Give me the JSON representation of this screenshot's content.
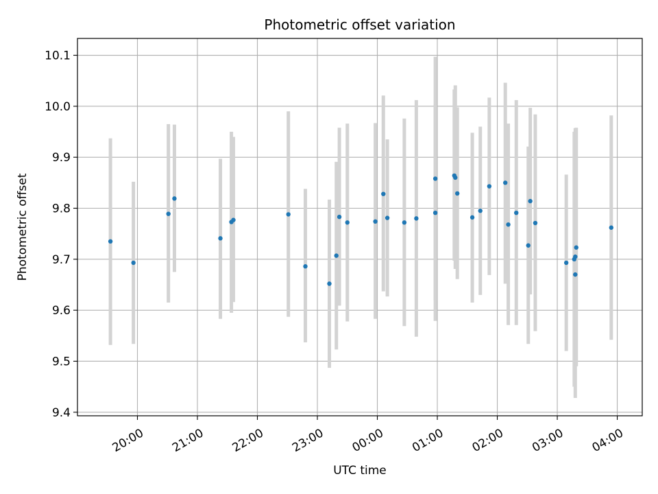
{
  "chart_data": {
    "type": "scatter",
    "title": "Photometric offset variation",
    "xlabel": "UTC time",
    "ylabel": "Photometric offset",
    "x_axis": "time",
    "x_range": [
      "19:00",
      "04:25"
    ],
    "x_ticks": [
      "20:00",
      "21:00",
      "22:00",
      "23:00",
      "00:00",
      "01:00",
      "02:00",
      "03:00",
      "04:00"
    ],
    "ylim": [
      9.393,
      10.133
    ],
    "y_ticks": [
      9.4,
      9.5,
      9.6,
      9.7,
      9.8,
      9.9,
      10.0,
      10.1
    ],
    "grid": true,
    "marker_color": "#1f77b4",
    "errorbar_color": "#d3d3d3",
    "points": [
      {
        "t": "19:33",
        "y": 9.735,
        "lo": 9.532,
        "hi": 9.937
      },
      {
        "t": "19:56",
        "y": 9.693,
        "lo": 9.534,
        "hi": 9.852
      },
      {
        "t": "20:31",
        "y": 9.789,
        "lo": 9.615,
        "hi": 9.965
      },
      {
        "t": "20:37",
        "y": 9.819,
        "lo": 9.675,
        "hi": 9.964
      },
      {
        "t": "21:23",
        "y": 9.741,
        "lo": 9.583,
        "hi": 9.897
      },
      {
        "t": "21:34",
        "y": 9.773,
        "lo": 9.595,
        "hi": 9.95
      },
      {
        "t": "21:36",
        "y": 9.777,
        "lo": 9.616,
        "hi": 9.94
      },
      {
        "t": "22:31",
        "y": 9.788,
        "lo": 9.587,
        "hi": 9.99
      },
      {
        "t": "22:48",
        "y": 9.686,
        "lo": 9.537,
        "hi": 9.838
      },
      {
        "t": "23:12",
        "y": 9.652,
        "lo": 9.487,
        "hi": 9.817
      },
      {
        "t": "23:19",
        "y": 9.707,
        "lo": 9.523,
        "hi": 9.891
      },
      {
        "t": "23:22",
        "y": 9.783,
        "lo": 9.609,
        "hi": 9.958
      },
      {
        "t": "23:30",
        "y": 9.772,
        "lo": 9.578,
        "hi": 9.966
      },
      {
        "t": "23:58",
        "y": 9.774,
        "lo": 9.583,
        "hi": 9.967
      },
      {
        "t": "00:06",
        "y": 9.828,
        "lo": 9.637,
        "hi": 10.021
      },
      {
        "t": "00:10",
        "y": 9.781,
        "lo": 9.627,
        "hi": 9.935
      },
      {
        "t": "00:27",
        "y": 9.772,
        "lo": 9.569,
        "hi": 9.976
      },
      {
        "t": "00:39",
        "y": 9.78,
        "lo": 9.548,
        "hi": 10.012
      },
      {
        "t": "00:58",
        "y": 9.858,
        "lo": 9.62,
        "hi": 10.097
      },
      {
        "t": "00:58",
        "y": 9.791,
        "lo": 9.579,
        "hi": 10.003
      },
      {
        "t": "01:17",
        "y": 9.864,
        "lo": 9.697,
        "hi": 10.033
      },
      {
        "t": "01:18",
        "y": 9.86,
        "lo": 9.681,
        "hi": 10.041
      },
      {
        "t": "01:20",
        "y": 9.829,
        "lo": 9.661,
        "hi": 9.998
      },
      {
        "t": "01:35",
        "y": 9.782,
        "lo": 9.615,
        "hi": 9.948
      },
      {
        "t": "01:43",
        "y": 9.795,
        "lo": 9.63,
        "hi": 9.96
      },
      {
        "t": "01:52",
        "y": 9.843,
        "lo": 9.669,
        "hi": 10.017
      },
      {
        "t": "02:08",
        "y": 9.85,
        "lo": 9.652,
        "hi": 10.046
      },
      {
        "t": "02:11",
        "y": 9.768,
        "lo": 9.571,
        "hi": 9.966
      },
      {
        "t": "02:19",
        "y": 9.791,
        "lo": 9.571,
        "hi": 10.012
      },
      {
        "t": "02:31",
        "y": 9.727,
        "lo": 9.534,
        "hi": 9.921
      },
      {
        "t": "02:33",
        "y": 9.814,
        "lo": 9.631,
        "hi": 9.997
      },
      {
        "t": "02:38",
        "y": 9.771,
        "lo": 9.559,
        "hi": 9.984
      },
      {
        "t": "03:09",
        "y": 9.693,
        "lo": 9.52,
        "hi": 9.866
      },
      {
        "t": "03:17",
        "y": 9.7,
        "lo": 9.45,
        "hi": 9.95
      },
      {
        "t": "03:18",
        "y": 9.67,
        "lo": 9.428,
        "hi": 9.957
      },
      {
        "t": "03:18",
        "y": 9.705,
        "lo": 9.491,
        "hi": 9.92
      },
      {
        "t": "03:19",
        "y": 9.723,
        "lo": 9.49,
        "hi": 9.958
      },
      {
        "t": "03:54",
        "y": 9.762,
        "lo": 9.542,
        "hi": 9.982
      }
    ]
  }
}
